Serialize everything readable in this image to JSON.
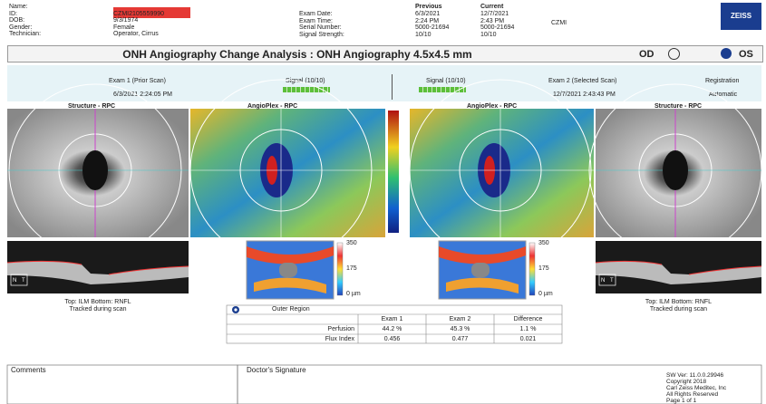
{
  "header": {
    "patient": [
      {
        "label": "Name:",
        "value": ""
      },
      {
        "label": "ID:",
        "value": "CZMI2105559990"
      },
      {
        "label": "DOB:",
        "value": "9/3/1974"
      },
      {
        "label": "Gender:",
        "value": "Female"
      },
      {
        "label": "Technician:",
        "value": "Operator, Cirrus"
      }
    ],
    "exam_columns": {
      "previous": "Previous",
      "current": "Current"
    },
    "exam": [
      {
        "label": "Exam Date:",
        "previous": "6/3/2021",
        "current": "12/7/2021"
      },
      {
        "label": "Exam Time:",
        "previous": "2:24 PM",
        "current": "2:43 PM"
      },
      {
        "label": "Serial Number:",
        "previous": "5000-21694",
        "current": "5000-21694"
      },
      {
        "label": "Signal Strength:",
        "previous": "10/10",
        "current": "10/10"
      }
    ],
    "site": "CZMI",
    "logo": "ZEISS"
  },
  "title": "ONH Angiography Change Analysis : ONH Angiography 4.5x4.5 mm",
  "eye_od": "OD",
  "eye_os": "OS",
  "exam1": {
    "name": "Exam 1 (Prior Scan)",
    "date": "6/3/2021 2:24:05 PM",
    "signal": "Signal (10/10)"
  },
  "exam2": {
    "name": "Exam 2 (Selected Scan)",
    "date": "12/7/2021 2:43:43 PM",
    "signal": "Signal (10/10)",
    "registration": "Registration",
    "registration_value": "Automatic"
  },
  "images": [
    "Structure - RPC",
    "AngioPlex - RPC",
    "AngioPlex - RPC",
    "Structure - RPC"
  ],
  "bscan": {
    "n": "N",
    "t": "T",
    "caption1": "Top: ILM  Bottom: RNFL",
    "caption2": "Tracked during scan"
  },
  "thickness_scale": [
    "350",
    "175",
    "0 µm"
  ],
  "table": {
    "region": "Outer Region",
    "headers": [
      "Exam 1",
      "Exam 2",
      "Difference"
    ],
    "rows": [
      [
        "Perfusion",
        "44.2 %",
        "45.3 %",
        "1.1 %"
      ],
      [
        "Flux Index",
        "0.456",
        "0.477",
        "0.021"
      ]
    ]
  },
  "footer": {
    "comments": "Comments",
    "signature": "Doctor's Signature",
    "info": [
      "SW Ver: 11.0.0.29946",
      "Copyright 2018",
      "Carl Zeiss Meditec, Inc",
      "All Rights Reserved",
      "Page 1 of 1"
    ]
  }
}
